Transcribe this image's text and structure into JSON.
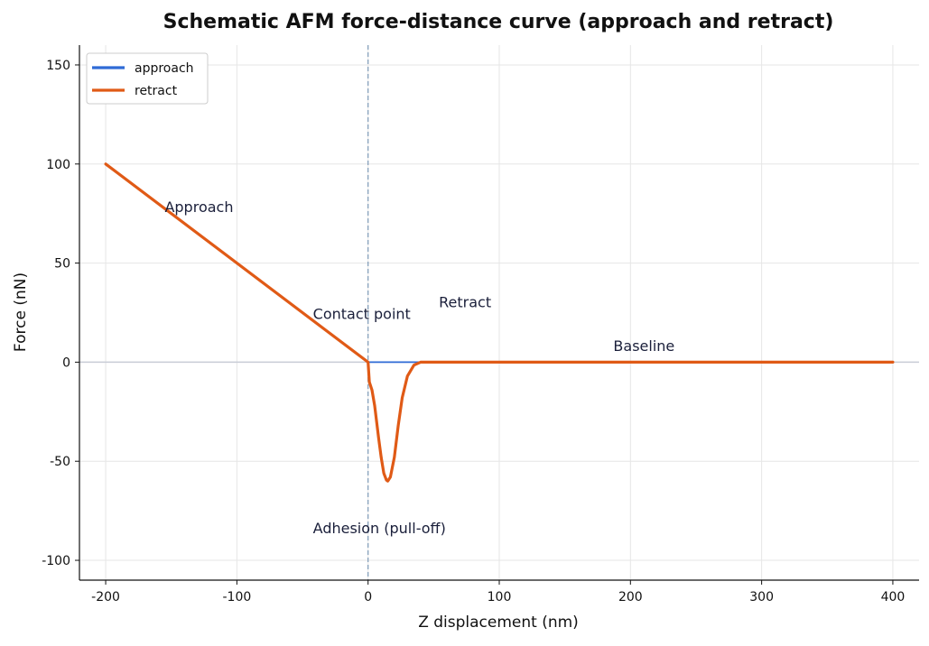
{
  "chart_data": {
    "type": "line",
    "title": "Schematic AFM force-distance curve (approach and retract)",
    "xlabel": "Z displacement (nm)",
    "ylabel": "Force (nN)",
    "xlim": [
      -220,
      420
    ],
    "ylim": [
      -110,
      160
    ],
    "xticks": [
      -200,
      -100,
      0,
      100,
      200,
      300,
      400
    ],
    "yticks": [
      -100,
      -50,
      0,
      50,
      100,
      150
    ],
    "xtick_labels": [
      "-200",
      "-100",
      "0",
      "100",
      "200",
      "300",
      "400"
    ],
    "ytick_labels": [
      "-100",
      "-50",
      "0",
      "50",
      "100",
      "150"
    ],
    "grid": true,
    "legend_position": "top-left",
    "contact_point_x": 0,
    "series": [
      {
        "name": "approach",
        "color": "#2f6bd6",
        "x": [
          -200,
          0,
          400
        ],
        "y": [
          100,
          0,
          0
        ]
      },
      {
        "name": "retract",
        "color": "#e05a16",
        "x": [
          -200,
          0,
          1,
          3,
          5,
          8,
          10,
          12,
          14,
          15,
          17,
          20,
          23,
          26,
          30,
          35,
          40,
          50,
          100,
          200,
          300,
          400
        ],
        "y": [
          100,
          0,
          -10,
          -14,
          -22,
          -38,
          -48,
          -56,
          -59.5,
          -60,
          -58,
          -48,
          -32,
          -18,
          -7,
          -1.5,
          0,
          0,
          0,
          0,
          0,
          0
        ]
      }
    ],
    "annotations": [
      {
        "text": "Approach",
        "x": -155,
        "y": 78
      },
      {
        "text": "Contact point",
        "x": -42,
        "y": 24
      },
      {
        "text": "Retract",
        "x": 54,
        "y": 30
      },
      {
        "text": "Baseline",
        "x": 187,
        "y": 8
      },
      {
        "text": "Adhesion (pull-off)",
        "x": -42,
        "y": -84
      }
    ]
  }
}
